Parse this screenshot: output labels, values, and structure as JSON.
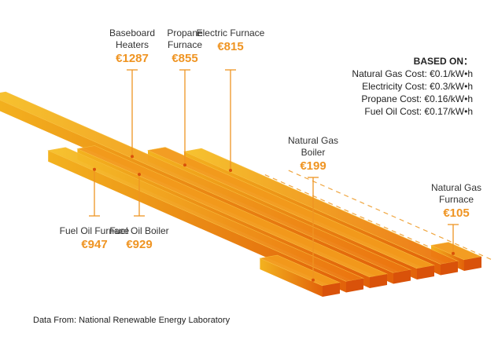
{
  "chart_data": {
    "type": "bar3d",
    "categories": [
      "Natural Gas Boiler",
      "Fuel Oil Furnace",
      "Fuel Oil Boiler",
      "Baseboard Heaters",
      "Propane Furnace",
      "Electric Furnace",
      "Natural Gas Furnace"
    ],
    "values": [
      199,
      947,
      929,
      1287,
      855,
      815,
      105
    ],
    "value_labels": [
      "€199",
      "€947",
      "€929",
      "€1287",
      "€855",
      "€815",
      "€105"
    ],
    "color": "#f39a1c",
    "notes_title": "BASED ON：",
    "notes": [
      "Natural Gas Cost: €0.1/kW•h",
      "Electricity Cost: €0.3/kW•h",
      "Propane Cost: €0.16/kW•h",
      "Fuel Oil Cost: €0.17/kW•h"
    ],
    "source": "Data From: National Renewable Energy Laboratory"
  }
}
